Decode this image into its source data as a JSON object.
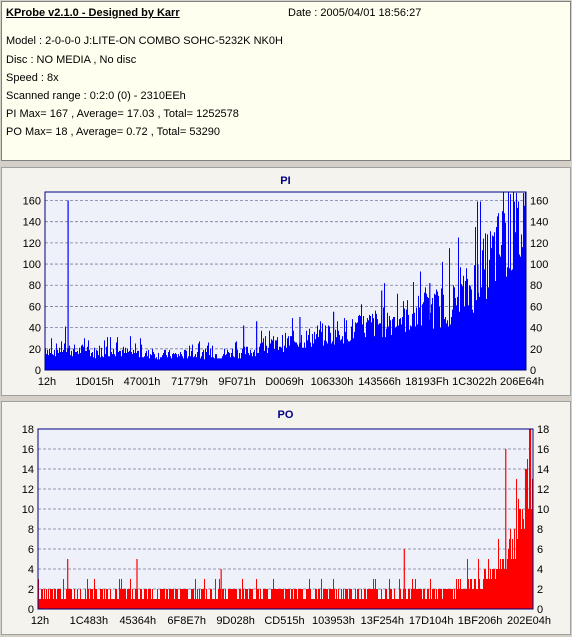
{
  "header": {
    "title": "KProbe v2.1.0 - Designed by Karr",
    "date": "Date : 2005/04/01 18:56:27",
    "lines": [
      "Model : 2-0-0-0 J:LITE-ON COMBO SOHC-5232K NK0H",
      "Disc : NO MEDIA , No disc",
      "Speed : 8x",
      "Scanned range : 0:2:0 (0) - 2310EEh",
      "PI Max= 167 , Average= 17.03 , Total= 1252578",
      "PO Max= 18 , Average= 0.72 , Total= 53290"
    ]
  },
  "colors": {
    "pi": "#0000ff",
    "po": "#ff0000",
    "plot_bg": "#eef0fa",
    "grid": "#7a7a9a"
  },
  "chart_data": [
    {
      "type": "area",
      "title": "PI",
      "ylim": [
        0,
        168
      ],
      "yticks": [
        0,
        20,
        40,
        60,
        80,
        100,
        120,
        140,
        160
      ],
      "xtick_labels": [
        "12h",
        "1D015h",
        "47001h",
        "71779h",
        "9F071h",
        "D0069h",
        "106330h",
        "143566h",
        "18193Fh",
        "1C3022h",
        "206E64h"
      ],
      "grid": true,
      "envelope": [
        24,
        22,
        24,
        26,
        22,
        22,
        24,
        20,
        20,
        22,
        21,
        22,
        20,
        20,
        19,
        18,
        18,
        17,
        18,
        17,
        17,
        18,
        18,
        19,
        18,
        19,
        18,
        19,
        20,
        20,
        21,
        22,
        24,
        26,
        27,
        30,
        32,
        33,
        35,
        36,
        38,
        40,
        40,
        42,
        44,
        46,
        45,
        48,
        50,
        52,
        54,
        55,
        58,
        60,
        62,
        63,
        66,
        68,
        70,
        72,
        74,
        75,
        80,
        88,
        95,
        108,
        118,
        130,
        140,
        148,
        155,
        158,
        160
      ],
      "spikes": [
        {
          "x": 0.048,
          "y": 160
        },
        {
          "x": 0.413,
          "y": 42
        },
        {
          "x": 0.44,
          "y": 46
        },
        {
          "x": 0.53,
          "y": 50
        },
        {
          "x": 0.6,
          "y": 55
        },
        {
          "x": 0.7,
          "y": 75
        },
        {
          "x": 0.8,
          "y": 82
        },
        {
          "x": 0.9,
          "y": 100
        },
        {
          "x": 0.995,
          "y": 167
        }
      ]
    },
    {
      "type": "bar",
      "title": "PO",
      "ylim": [
        0,
        18
      ],
      "yticks": [
        0,
        2,
        4,
        6,
        8,
        10,
        12,
        14,
        16,
        18
      ],
      "xtick_labels": [
        "12h",
        "1C483h",
        "45364h",
        "6F8E7h",
        "9D028h",
        "CD515h",
        "103953h",
        "13F254h",
        "17D104h",
        "1BF206h",
        "202E04h"
      ],
      "grid": true,
      "envelope": [
        2,
        2,
        2,
        2,
        2,
        2,
        2,
        2,
        2,
        2,
        2,
        2,
        2,
        2,
        2,
        2,
        2,
        2,
        2,
        2,
        2,
        2,
        2,
        2,
        2,
        2,
        2,
        2,
        2,
        2,
        2,
        2,
        2,
        2,
        2,
        2,
        2,
        2,
        2,
        2,
        2,
        2,
        2,
        2,
        2,
        2,
        2,
        2,
        2,
        2,
        2,
        2,
        2,
        2,
        2,
        2,
        2,
        2,
        2,
        2,
        2,
        2,
        3,
        3,
        3,
        4,
        4,
        5,
        6,
        8,
        10,
        13,
        16
      ],
      "spikes": [
        {
          "x": 0.06,
          "y": 5
        },
        {
          "x": 0.2,
          "y": 5
        },
        {
          "x": 0.37,
          "y": 4
        },
        {
          "x": 0.74,
          "y": 6
        },
        {
          "x": 0.945,
          "y": 16
        },
        {
          "x": 0.985,
          "y": 14
        },
        {
          "x": 0.995,
          "y": 18
        }
      ]
    }
  ]
}
